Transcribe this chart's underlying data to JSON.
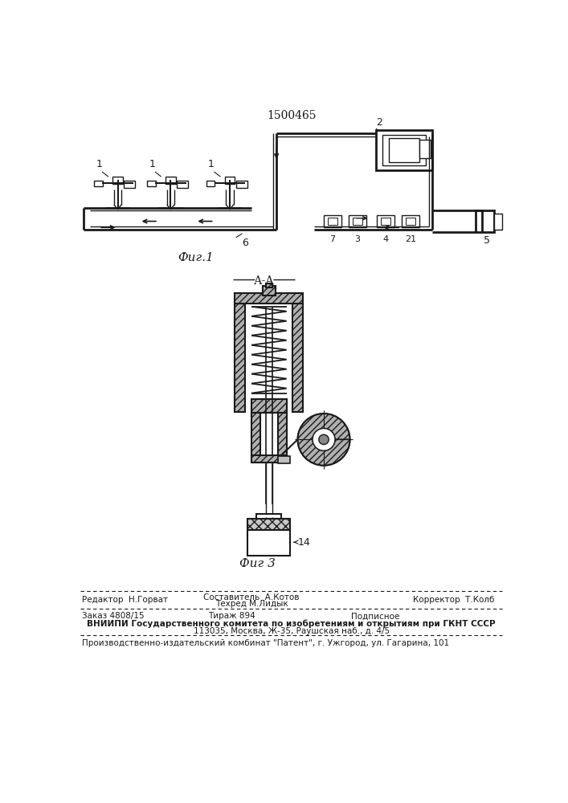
{
  "patent_number": "1500465",
  "fig1_label": "Фиг.1",
  "fig3_label": "Фиг 3",
  "section_label": "А-А",
  "footer_line1_left": "Редактор  Н.Горват",
  "footer_line1_center1": "Составитель  А.Котов",
  "footer_line1_center2": "Техред М.Лидык",
  "footer_line1_right": "Корректор  Т.Колб",
  "footer_line2_col1": "Заказ 4808/15",
  "footer_line2_col2": "Тираж 894",
  "footer_line2_col3": "Подписное",
  "footer_line3": "ВНИИПИ Государственного комитета по изобретениям и открытиям при ГКНТ СССР",
  "footer_line4": "113035, Москва, Ж-35, Раушская наб., д. 4/5",
  "footer_line5": "Производственно-издательский комбинат \"Патент\", г. Ужгород, ул. Гагарина, 101",
  "bg_color": "#ffffff",
  "line_color": "#1a1a1a",
  "text_color": "#1a1a1a",
  "hatch_color": "#555555"
}
